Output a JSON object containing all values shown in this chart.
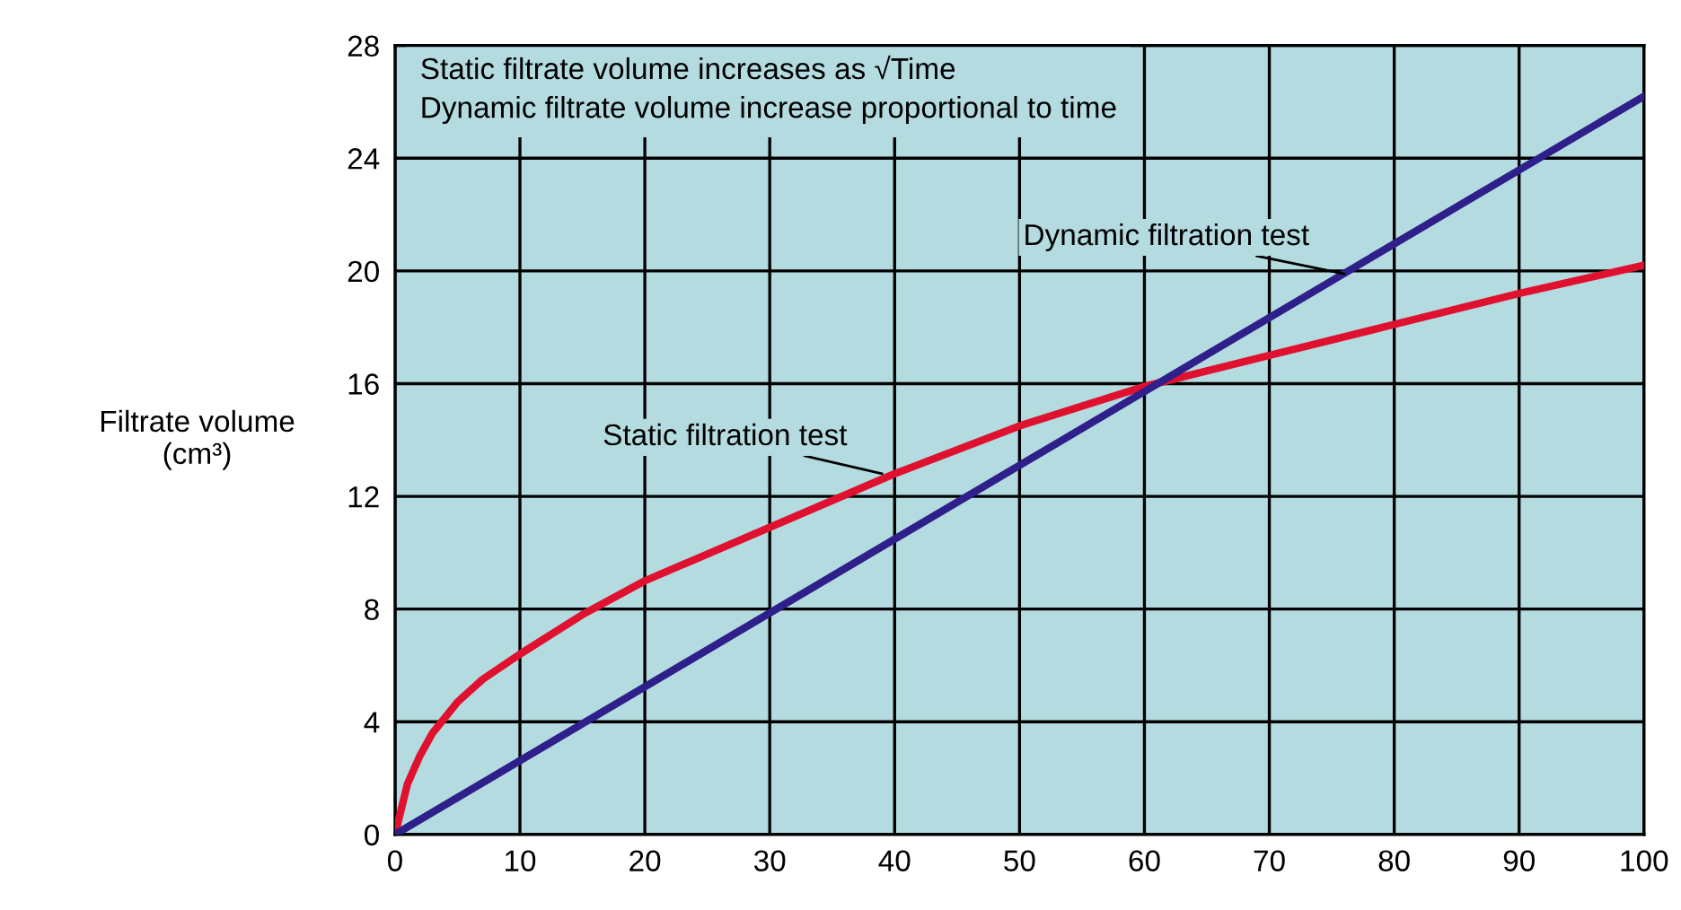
{
  "chart_data": {
    "type": "line",
    "ylabel": "Filtrate volume\n(cm³)",
    "annotations": [
      "Static filtrate volume increases as √Time\nDynamic filtrate volume increase proportional to time",
      {
        "text": "Dynamic filtration test",
        "x": 76,
        "y": 19.9
      },
      {
        "text": "Static filtration test",
        "x": 39,
        "y": 12.8
      }
    ],
    "series": [
      {
        "color": "#e0102f",
        "x": [
          0,
          1,
          2,
          3,
          5,
          7,
          10,
          15,
          20,
          30,
          40,
          50,
          60,
          70,
          80,
          90,
          100
        ],
        "values": [
          0,
          1.8,
          2.8,
          3.6,
          4.7,
          5.5,
          6.4,
          7.8,
          9.0,
          10.9,
          12.8,
          14.5,
          15.9,
          17.0,
          18.1,
          19.2,
          20.2
        ]
      },
      {
        "color": "#2e1f8a",
        "x": [
          0,
          100
        ],
        "values": [
          0,
          26.2
        ]
      }
    ],
    "xlim": [
      0,
      100
    ],
    "ylim": [
      0,
      28
    ],
    "xticks": [
      0,
      10,
      20,
      30,
      40,
      50,
      60,
      70,
      80,
      90,
      100
    ],
    "yticks": [
      0,
      4,
      8,
      12,
      16,
      20,
      24,
      28
    ],
    "grid": true,
    "legend": false,
    "marker": "none",
    "line_style": "solid"
  }
}
